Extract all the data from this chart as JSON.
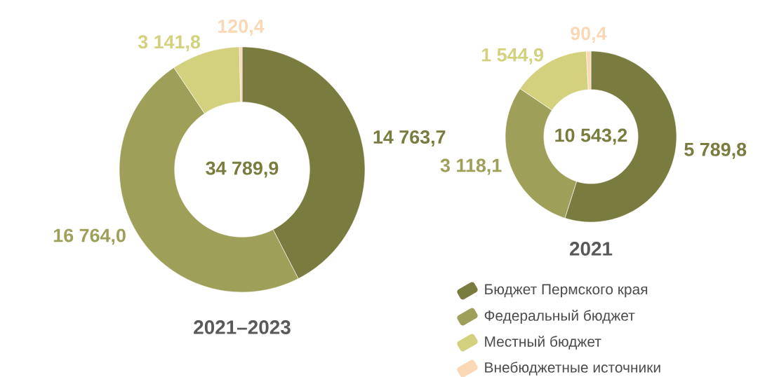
{
  "chart_data": [
    {
      "type": "donut",
      "title": "2021–2023",
      "categories": [
        null,
        null,
        null,
        null
      ],
      "values": [
        14763.7,
        16764.0,
        3141.8,
        120.4
      ],
      "value_labels": [
        "14 763,7",
        "16 764,0",
        "3 141,8",
        "120,4"
      ],
      "colors": [
        "#7a7c3f",
        "#9ea05a",
        "#d3d17e",
        "#fad8b5"
      ],
      "annotations": [
        "34 789,9"
      ]
    },
    {
      "type": "donut",
      "title": "2021",
      "categories": [
        "Бюджет Пермского края",
        "Федеральный бюджет",
        "Местный бюджет",
        "Внебюджетные источники"
      ],
      "values": [
        5789.8,
        3118.1,
        1544.9,
        90.4
      ],
      "value_labels": [
        "5 789,8",
        "3 118,1",
        "1 544,9",
        "90,4"
      ],
      "colors": [
        "#7a7c3f",
        "#9ea05a",
        "#d3d17e",
        "#fad8b5"
      ],
      "annotations": [
        "10 543,2"
      ],
      "legend": "bottom"
    }
  ]
}
